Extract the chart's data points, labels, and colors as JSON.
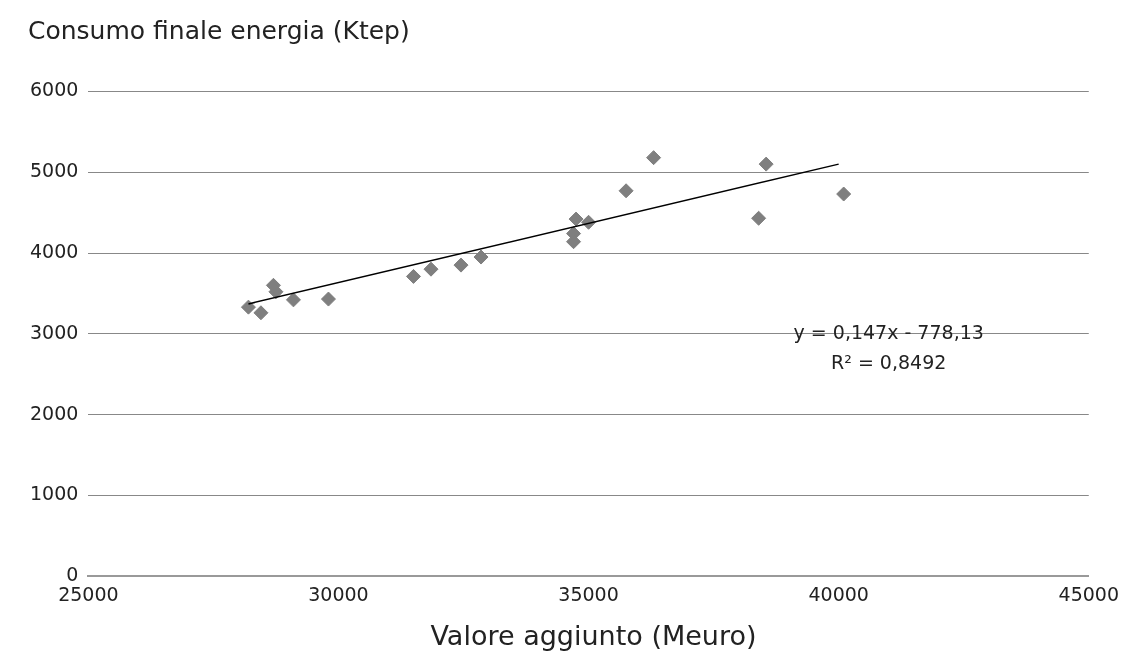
{
  "chart_data": {
    "type": "scatter",
    "title": "Consumo finale energia (Ktep)",
    "xlabel": "Valore aggiunto (Meuro)",
    "x": [
      28200,
      28450,
      28700,
      28750,
      29100,
      29800,
      31500,
      31850,
      32450,
      32850,
      34700,
      34700,
      34750,
      35000,
      35750,
      36300,
      38400,
      38550,
      40100
    ],
    "values": [
      3330,
      3260,
      3600,
      3520,
      3420,
      3430,
      3710,
      3800,
      3850,
      3950,
      4240,
      4140,
      4420,
      4380,
      4770,
      5180,
      4430,
      5100,
      4730
    ],
    "color": "#7f7f7f",
    "marker": "diamond",
    "series": [
      {
        "type": "line",
        "x": [
          28200,
          40000
        ],
        "values": [
          3370,
          5100
        ],
        "color": "#000000",
        "marker": "none"
      }
    ],
    "annotations": [
      "y = 0,147x - 778,13",
      "R² = 0,8492"
    ],
    "xlim": [
      25000,
      45000
    ],
    "xticks": [
      25000,
      30000,
      35000,
      40000,
      45000
    ],
    "ylim": [
      0,
      6000
    ],
    "yticks": [
      0,
      1000,
      2000,
      3000,
      4000,
      5000,
      6000
    ],
    "grid": "y",
    "legend": false
  }
}
